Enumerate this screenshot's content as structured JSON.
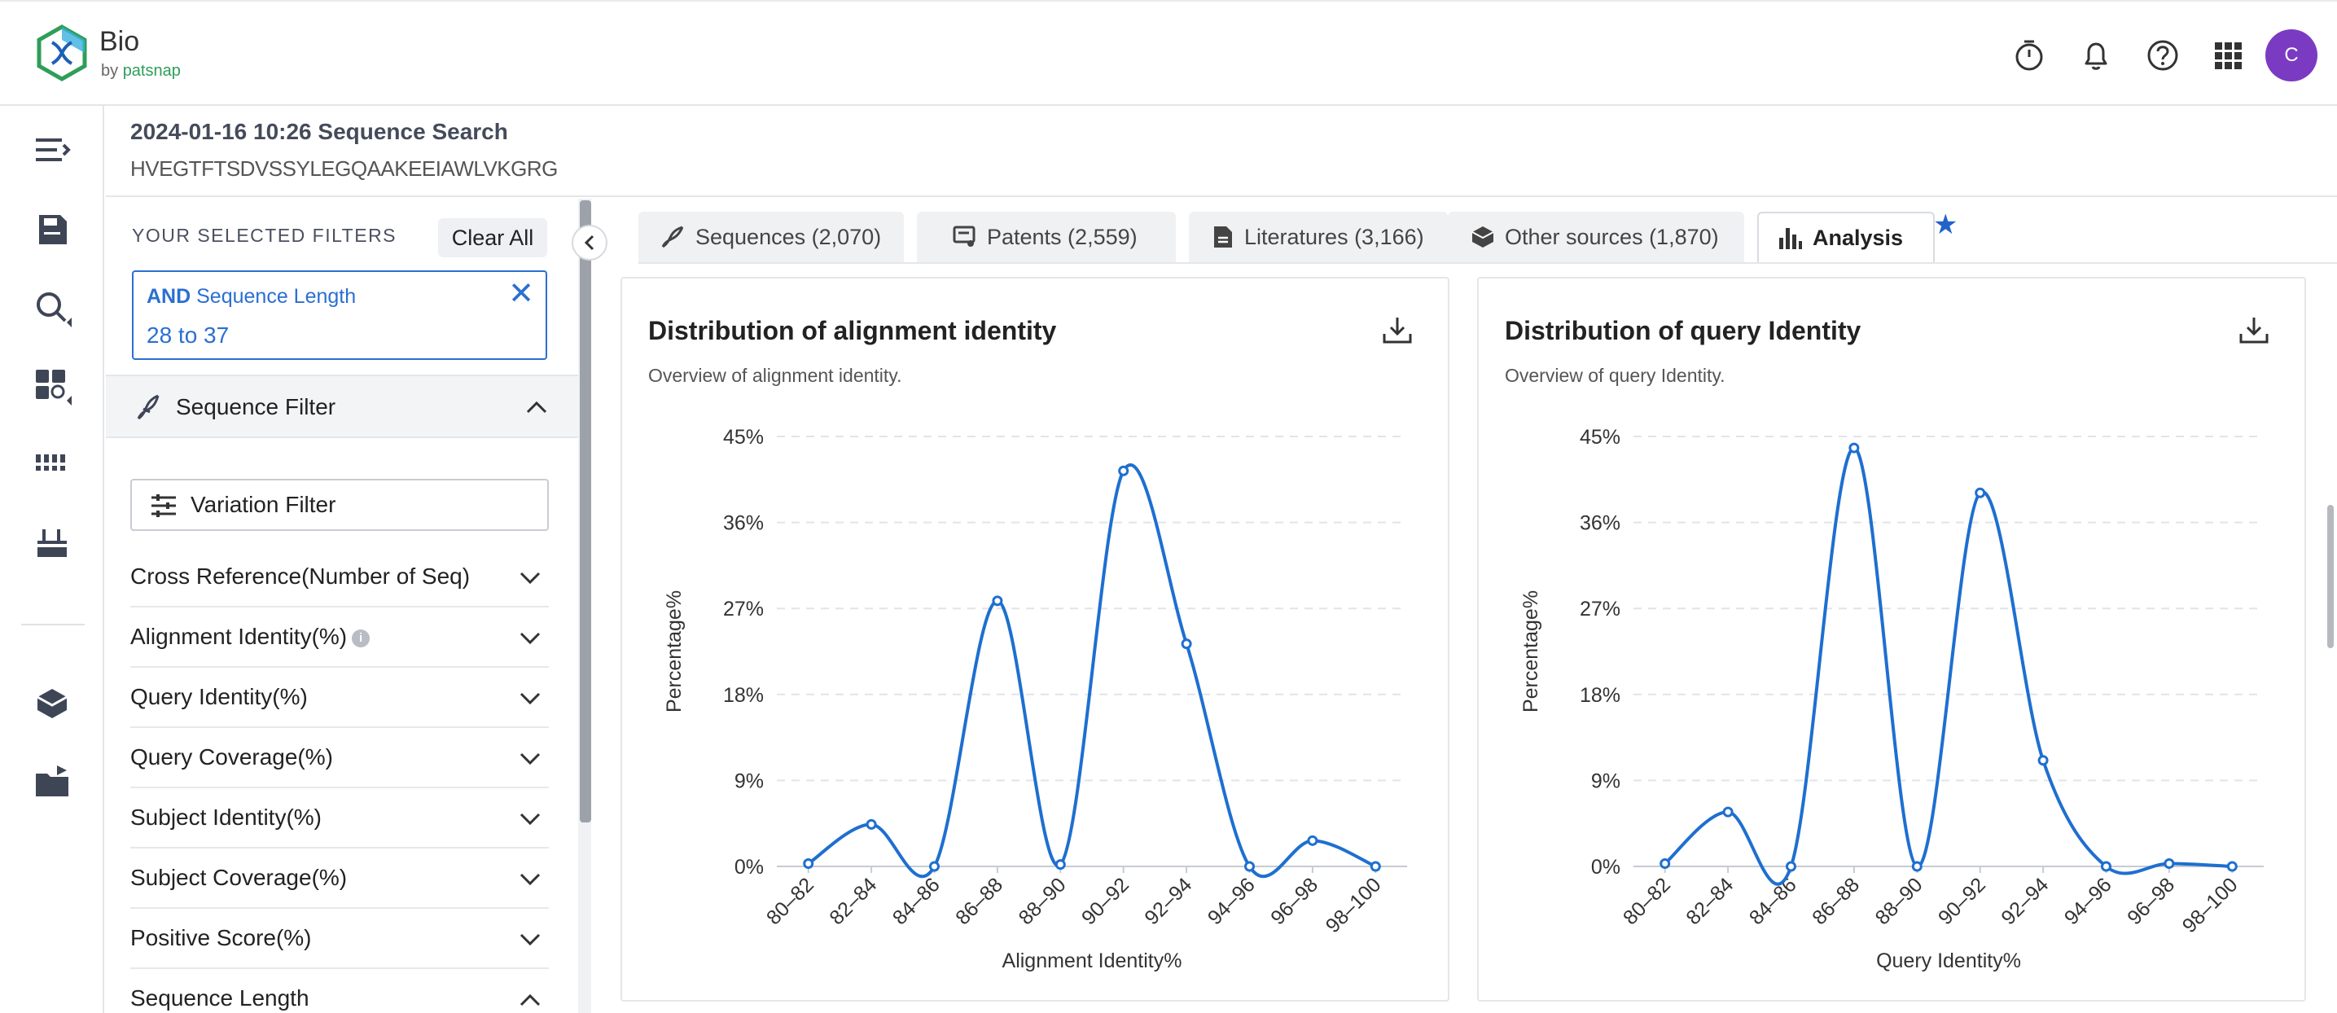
{
  "header": {
    "brand": "Bio",
    "brand_by": "by",
    "brand_company": "patsnap",
    "icons": [
      "timer-icon",
      "bell-icon",
      "help-icon",
      "apps-grid-icon"
    ],
    "avatar_initial": "C",
    "avatar_color": "#7a3bc2"
  },
  "rail": {
    "items": [
      "menu-expand-icon",
      "save-icon",
      "search-icon",
      "dashboard-search-icon",
      "barcode-icon",
      "workspace-icon",
      "box-icon",
      "folder-icon"
    ]
  },
  "subheader": {
    "title": "2024-01-16 10:26 Sequence Search",
    "sequence": "HVEGTFTSDVSSYLEGQAAKEEIAWLVKGRG"
  },
  "filters": {
    "selected_label": "YOUR SELECTED FILTERS",
    "clear_all": "Clear All",
    "chip": {
      "operator": "AND",
      "field": "Sequence Length",
      "value": "28 to 37"
    },
    "sequence_filter": "Sequence Filter",
    "variation_filter": "Variation Filter",
    "facets": [
      {
        "label": "Cross Reference(Number of Seq)",
        "expanded": false
      },
      {
        "label": "Alignment Identity(%)",
        "expanded": false,
        "info": true
      },
      {
        "label": "Query Identity(%)",
        "expanded": false
      },
      {
        "label": "Query Coverage(%)",
        "expanded": false
      },
      {
        "label": "Subject Identity(%)",
        "expanded": false
      },
      {
        "label": "Subject Coverage(%)",
        "expanded": false
      },
      {
        "label": "Positive Score(%)",
        "expanded": false
      },
      {
        "label": "Sequence Length",
        "expanded": true
      }
    ]
  },
  "tabs": [
    {
      "label": "Sequences (2,070)",
      "icon": "dna-icon",
      "active": false
    },
    {
      "label": "Patents (2,559)",
      "icon": "patent-icon",
      "active": false
    },
    {
      "label": "Literatures (3,166)",
      "icon": "document-icon",
      "active": false
    },
    {
      "label": "Other sources (1,870)",
      "icon": "box-icon",
      "active": false
    },
    {
      "label": "Analysis",
      "icon": "bar-chart-icon",
      "active": true
    }
  ],
  "accent_color": "#2163c9",
  "line_color": "#1e6fd0",
  "chart_data": [
    {
      "type": "line",
      "title": "Distribution of alignment identity",
      "subtitle": "Overview of alignment identity.",
      "xlabel": "Alignment Identity%",
      "ylabel": "Percentage%",
      "categories": [
        "80–82",
        "82–84",
        "84–86",
        "86–88",
        "88–90",
        "90–92",
        "92–94",
        "94–96",
        "96–98",
        "98–100"
      ],
      "values": [
        0.3,
        4.4,
        0,
        27.8,
        0.2,
        41.4,
        23.3,
        0,
        2.7,
        0
      ],
      "yticks": [
        "0%",
        "9%",
        "18%",
        "27%",
        "36%",
        "45%"
      ],
      "ylim": [
        0,
        45
      ],
      "grid": true
    },
    {
      "type": "line",
      "title": "Distribution of query Identity",
      "subtitle": "Overview of query Identity.",
      "xlabel": "Query Identity%",
      "ylabel": "Percentage%",
      "categories": [
        "80–82",
        "82–84",
        "84–86",
        "86–88",
        "88–90",
        "90–92",
        "92–94",
        "94–96",
        "96–98",
        "98–100"
      ],
      "values": [
        0.3,
        5.7,
        0,
        43.8,
        0,
        39.1,
        11.1,
        0,
        0.3,
        0
      ],
      "yticks": [
        "0%",
        "9%",
        "18%",
        "27%",
        "36%",
        "45%"
      ],
      "ylim": [
        0,
        45
      ],
      "grid": true
    }
  ]
}
